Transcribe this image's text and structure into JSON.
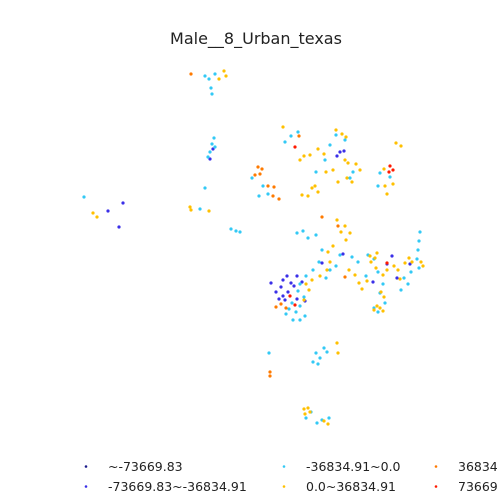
{
  "chart_data": {
    "type": "scatter",
    "title": "Male__8_Urban_texas",
    "xlabel": "",
    "ylabel": "",
    "axes_visible": false,
    "grid": false,
    "legend_placement": "bottom",
    "legend_columns": 3,
    "series": [
      {
        "name": "~-73669.83",
        "color": "#1a1a8a",
        "points": []
      },
      {
        "name": "-73669.83~-36834.91",
        "color": "#3a2fe8",
        "points": [
          [
            123,
            203
          ],
          [
            108,
            211
          ],
          [
            119,
            227
          ],
          [
            210,
            159
          ],
          [
            213,
            149
          ],
          [
            283,
            280
          ],
          [
            287,
            276
          ],
          [
            291,
            283
          ],
          [
            281,
            287
          ],
          [
            276,
            292
          ],
          [
            288,
            292
          ],
          [
            294,
            286
          ],
          [
            279,
            299
          ],
          [
            297,
            276
          ],
          [
            285,
            300
          ],
          [
            302,
            282
          ],
          [
            340,
            152
          ],
          [
            337,
            156
          ],
          [
            344,
            151
          ],
          [
            343,
            254
          ],
          [
            322,
            263
          ],
          [
            387,
            264
          ],
          [
            397,
            278
          ],
          [
            410,
            264
          ],
          [
            392,
            256
          ],
          [
            373,
            282
          ],
          [
            271,
            283
          ],
          [
            283,
            296
          ],
          [
            297,
            299
          ],
          [
            305,
            301
          ]
        ]
      },
      {
        "name": "-36834.91~0.0",
        "color": "#33c9f5",
        "points": [
          [
            205,
            76
          ],
          [
            209,
            79
          ],
          [
            211,
            88
          ],
          [
            212,
            94
          ],
          [
            215,
            74
          ],
          [
            214,
            138
          ],
          [
            212,
            144
          ],
          [
            215,
            147
          ],
          [
            210,
            152
          ],
          [
            208,
            157
          ],
          [
            205,
            188
          ],
          [
            200,
            209
          ],
          [
            231,
            229
          ],
          [
            236,
            231
          ],
          [
            240,
            232
          ],
          [
            84,
            197
          ],
          [
            263,
            186
          ],
          [
            268,
            194
          ],
          [
            259,
            196
          ],
          [
            252,
            178
          ],
          [
            285,
            142
          ],
          [
            298,
            132
          ],
          [
            291,
            136
          ],
          [
            336,
            135
          ],
          [
            330,
            145
          ],
          [
            345,
            140
          ],
          [
            325,
            160
          ],
          [
            316,
            172
          ],
          [
            350,
            178
          ],
          [
            353,
            172
          ],
          [
            380,
            173
          ],
          [
            378,
            186
          ],
          [
            390,
            177
          ],
          [
            297,
            233
          ],
          [
            303,
            231
          ],
          [
            308,
            238
          ],
          [
            316,
            235
          ],
          [
            322,
            250
          ],
          [
            319,
            262
          ],
          [
            313,
            270
          ],
          [
            306,
            276
          ],
          [
            300,
            284
          ],
          [
            298,
            291
          ],
          [
            292,
            303
          ],
          [
            289,
            309
          ],
          [
            296,
            312
          ],
          [
            300,
            306
          ],
          [
            304,
            297
          ],
          [
            293,
            320
          ],
          [
            286,
            314
          ],
          [
            305,
            316
          ],
          [
            300,
            320
          ],
          [
            326,
            278
          ],
          [
            330,
            270
          ],
          [
            336,
            266
          ],
          [
            340,
            255
          ],
          [
            352,
            257
          ],
          [
            358,
            262
          ],
          [
            366,
            276
          ],
          [
            368,
            255
          ],
          [
            374,
            259
          ],
          [
            378,
            272
          ],
          [
            383,
            284
          ],
          [
            380,
            293
          ],
          [
            385,
            303
          ],
          [
            374,
            308
          ],
          [
            378,
            312
          ],
          [
            420,
            232
          ],
          [
            419,
            241
          ],
          [
            418,
            250
          ],
          [
            417,
            259
          ],
          [
            419,
            268
          ],
          [
            411,
            272
          ],
          [
            404,
            278
          ],
          [
            408,
            284
          ],
          [
            401,
            290
          ],
          [
            316,
            353
          ],
          [
            320,
            358
          ],
          [
            324,
            348
          ],
          [
            313,
            362
          ],
          [
            318,
            364
          ],
          [
            327,
            352
          ],
          [
            269,
            353
          ],
          [
            322,
            420
          ],
          [
            317,
            423
          ],
          [
            306,
            418
          ],
          [
            329,
            418
          ],
          [
            311,
            412
          ]
        ]
      },
      {
        "name": "0.0~36834.91",
        "color": "#ffc000",
        "points": [
          [
            224,
            71
          ],
          [
            226,
            76
          ],
          [
            219,
            79
          ],
          [
            283,
            127
          ],
          [
            300,
            160
          ],
          [
            304,
            156
          ],
          [
            310,
            155
          ],
          [
            318,
            149
          ],
          [
            324,
            154
          ],
          [
            336,
            130
          ],
          [
            342,
            134
          ],
          [
            346,
            137
          ],
          [
            345,
            160
          ],
          [
            348,
            163
          ],
          [
            356,
            164
          ],
          [
            360,
            170
          ],
          [
            352,
            182
          ],
          [
            347,
            178
          ],
          [
            338,
            182
          ],
          [
            333,
            170
          ],
          [
            326,
            172
          ],
          [
            315,
            186
          ],
          [
            318,
            192
          ],
          [
            312,
            188
          ],
          [
            308,
            196
          ],
          [
            302,
            195
          ],
          [
            396,
            143
          ],
          [
            401,
            146
          ],
          [
            385,
            186
          ],
          [
            393,
            184
          ],
          [
            387,
            194
          ],
          [
            384,
            169
          ],
          [
            93,
            213
          ],
          [
            97,
            217
          ],
          [
            190,
            207
          ],
          [
            191,
            210
          ],
          [
            209,
            211
          ],
          [
            337,
            220
          ],
          [
            341,
            232
          ],
          [
            346,
            240
          ],
          [
            350,
            233
          ],
          [
            345,
            226
          ],
          [
            328,
            252
          ],
          [
            333,
            246
          ],
          [
            330,
            262
          ],
          [
            327,
            270
          ],
          [
            320,
            276
          ],
          [
            312,
            280
          ],
          [
            306,
            284
          ],
          [
            309,
            290
          ],
          [
            304,
            300
          ],
          [
            349,
            270
          ],
          [
            355,
            275
          ],
          [
            359,
            283
          ],
          [
            362,
            289
          ],
          [
            367,
            281
          ],
          [
            371,
            262
          ],
          [
            375,
            258
          ],
          [
            376,
            268
          ],
          [
            383,
            275
          ],
          [
            387,
            270
          ],
          [
            394,
            266
          ],
          [
            398,
            270
          ],
          [
            400,
            279
          ],
          [
            405,
            263
          ],
          [
            409,
            258
          ],
          [
            412,
            262
          ],
          [
            421,
            262
          ],
          [
            423,
            266
          ],
          [
            381,
            292
          ],
          [
            384,
            297
          ],
          [
            377,
            306
          ],
          [
            380,
            308
          ],
          [
            374,
            310
          ],
          [
            383,
            311
          ],
          [
            338,
            353
          ],
          [
            337,
            343
          ],
          [
            304,
            409
          ],
          [
            308,
            408
          ],
          [
            310,
            412
          ],
          [
            305,
            414
          ],
          [
            324,
            421
          ],
          [
            328,
            424
          ],
          [
            370,
            256
          ],
          [
            377,
            253
          ]
        ]
      },
      {
        "name": "36834",
        "color": "#ff7a00",
        "points": [
          [
            191,
            74
          ],
          [
            258,
            167
          ],
          [
            262,
            169
          ],
          [
            255,
            175
          ],
          [
            260,
            174
          ],
          [
            268,
            186
          ],
          [
            274,
            187
          ],
          [
            273,
            196
          ],
          [
            279,
            199
          ],
          [
            299,
            136
          ],
          [
            276,
            307
          ],
          [
            281,
            304
          ],
          [
            286,
            308
          ],
          [
            270,
            372
          ],
          [
            270,
            376
          ],
          [
            322,
            217
          ],
          [
            338,
            226
          ],
          [
            345,
            277
          ]
        ]
      },
      {
        "name": "73669",
        "color": "#ff1a00",
        "points": [
          [
            295,
            147
          ],
          [
            390,
            166
          ],
          [
            393,
            170
          ],
          [
            389,
            172
          ],
          [
            387,
            263
          ],
          [
            290,
            296
          ],
          [
            295,
            305
          ]
        ]
      }
    ]
  }
}
